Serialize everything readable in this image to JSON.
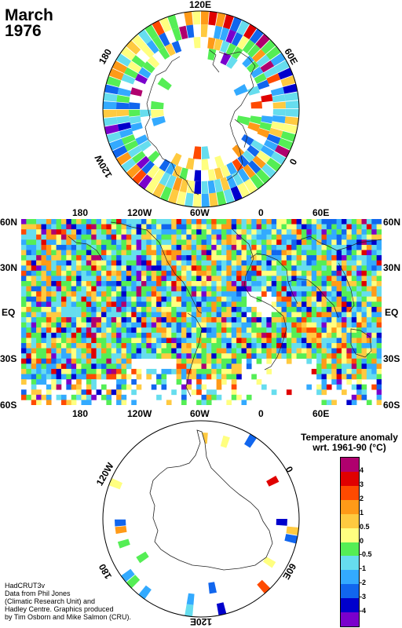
{
  "title": {
    "line1": "March",
    "line2": "1976"
  },
  "north_pole": {
    "labels": {
      "top": "120E",
      "upper_left": "180",
      "upper_right": "60E",
      "lower_left": "120W",
      "lower_right": "0"
    }
  },
  "south_pole": {
    "labels": {
      "bottom": "120E",
      "upper_left": "120W",
      "upper_right": "0",
      "lower_left": "180",
      "lower_right": "60E"
    }
  },
  "map": {
    "lon_labels_top": [
      "180",
      "120W",
      "60W",
      "0",
      "60E"
    ],
    "lon_labels_bottom": [
      "180",
      "120W",
      "60W",
      "0",
      "60E"
    ],
    "lat_labels": [
      "60N",
      "30N",
      "EQ",
      "30S",
      "60S"
    ]
  },
  "legend": {
    "title_line1": "Temperature anomaly",
    "title_line2": "wrt. 1961-90  (°C)",
    "ticks": [
      "4",
      "3",
      "2",
      "1",
      "0.5",
      "0",
      "-0.5",
      "-1",
      "-2",
      "-3",
      "-4"
    ],
    "colors": [
      "#b0006e",
      "#e00000",
      "#ff4a00",
      "#ff9a18",
      "#ffca40",
      "#ffff80",
      "#55ee55",
      "#66ddee",
      "#33aaff",
      "#1166ee",
      "#0000cc",
      "#7a00cc"
    ]
  },
  "credit": {
    "lines": [
      "HadCRUT3v",
      "Data from Phil Jones",
      "(Climatic Research Unit) and",
      "Hadley Centre.  Graphics produced",
      "by Tim Osborn and Mike Salmon (CRU)."
    ]
  }
}
